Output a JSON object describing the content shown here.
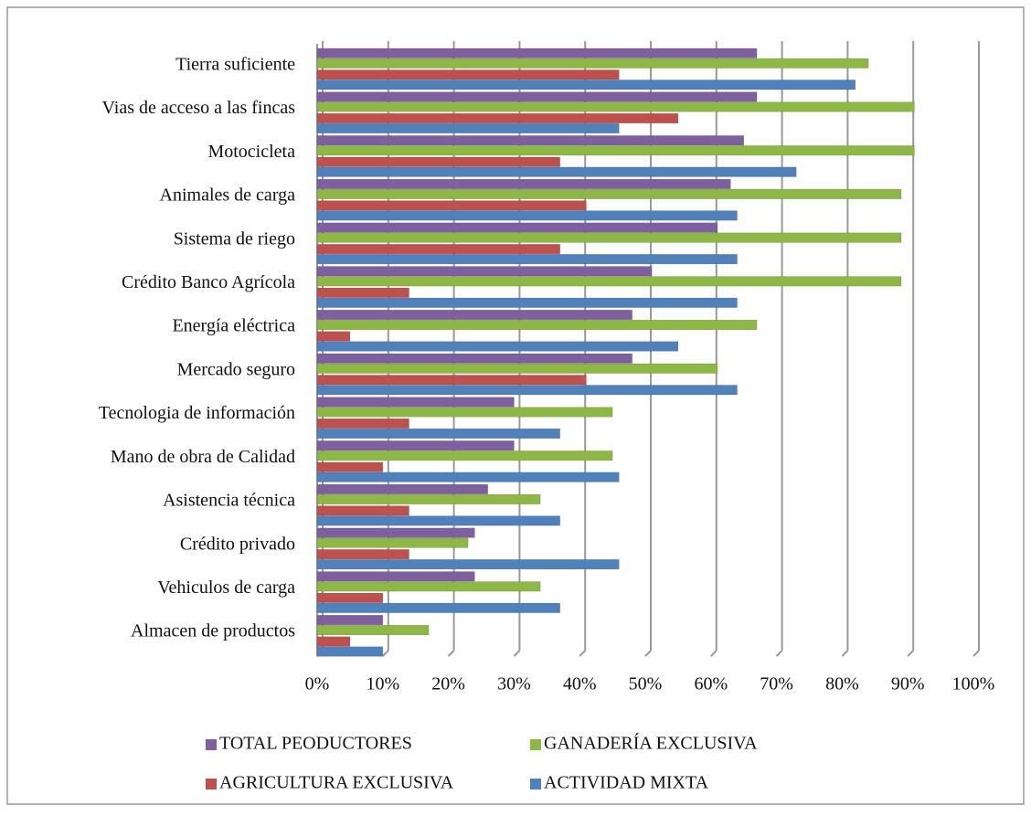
{
  "chart_data": {
    "type": "bar",
    "orientation": "horizontal",
    "categories": [
      "Tierra suficiente",
      "Vias de acceso a las fincas",
      "Motocicleta",
      "Animales de carga",
      "Sistema de riego",
      "Crédito Banco Agrícola",
      "Energía eléctrica",
      "Mercado seguro",
      "Tecnologia de información",
      "Mano de obra de Calidad",
      "Asistencia técnica",
      "Crédito privado",
      "Vehiculos de carga",
      "Almacen de productos"
    ],
    "series": [
      {
        "name": "TOTAL PEODUCTORES",
        "color": "#7e5fa0",
        "values": [
          67,
          67,
          65,
          63,
          61,
          51,
          48,
          48,
          30,
          30,
          26,
          24,
          24,
          10
        ]
      },
      {
        "name": "GANADERÍA EXCLUSIVA",
        "color": "#8db843",
        "values": [
          84,
          91,
          91,
          89,
          89,
          89,
          67,
          61,
          45,
          45,
          34,
          23,
          34,
          17
        ]
      },
      {
        "name": "AGRICULTURA EXCLUSIVA",
        "color": "#c0504d",
        "values": [
          46,
          55,
          37,
          41,
          37,
          14,
          5,
          41,
          14,
          10,
          14,
          14,
          10,
          5
        ]
      },
      {
        "name": "ACTIVIDAD MIXTA",
        "color": "#4f81bd",
        "values": [
          82,
          46,
          73,
          64,
          64,
          64,
          55,
          64,
          37,
          46,
          37,
          46,
          37,
          10
        ]
      }
    ],
    "xlim": [
      0,
      100
    ],
    "xticks": [
      {
        "value": 0,
        "label": "0%"
      },
      {
        "value": 10,
        "label": "10%"
      },
      {
        "value": 20,
        "label": "20%"
      },
      {
        "value": 30,
        "label": "30%"
      },
      {
        "value": 40,
        "label": "40%"
      },
      {
        "value": 50,
        "label": "50%"
      },
      {
        "value": 60,
        "label": "60%"
      },
      {
        "value": 70,
        "label": "70%"
      },
      {
        "value": 80,
        "label": "80%"
      },
      {
        "value": 90,
        "label": "90%"
      },
      {
        "value": 100,
        "label": "100%"
      }
    ],
    "grid": true,
    "legend": "bottom"
  }
}
